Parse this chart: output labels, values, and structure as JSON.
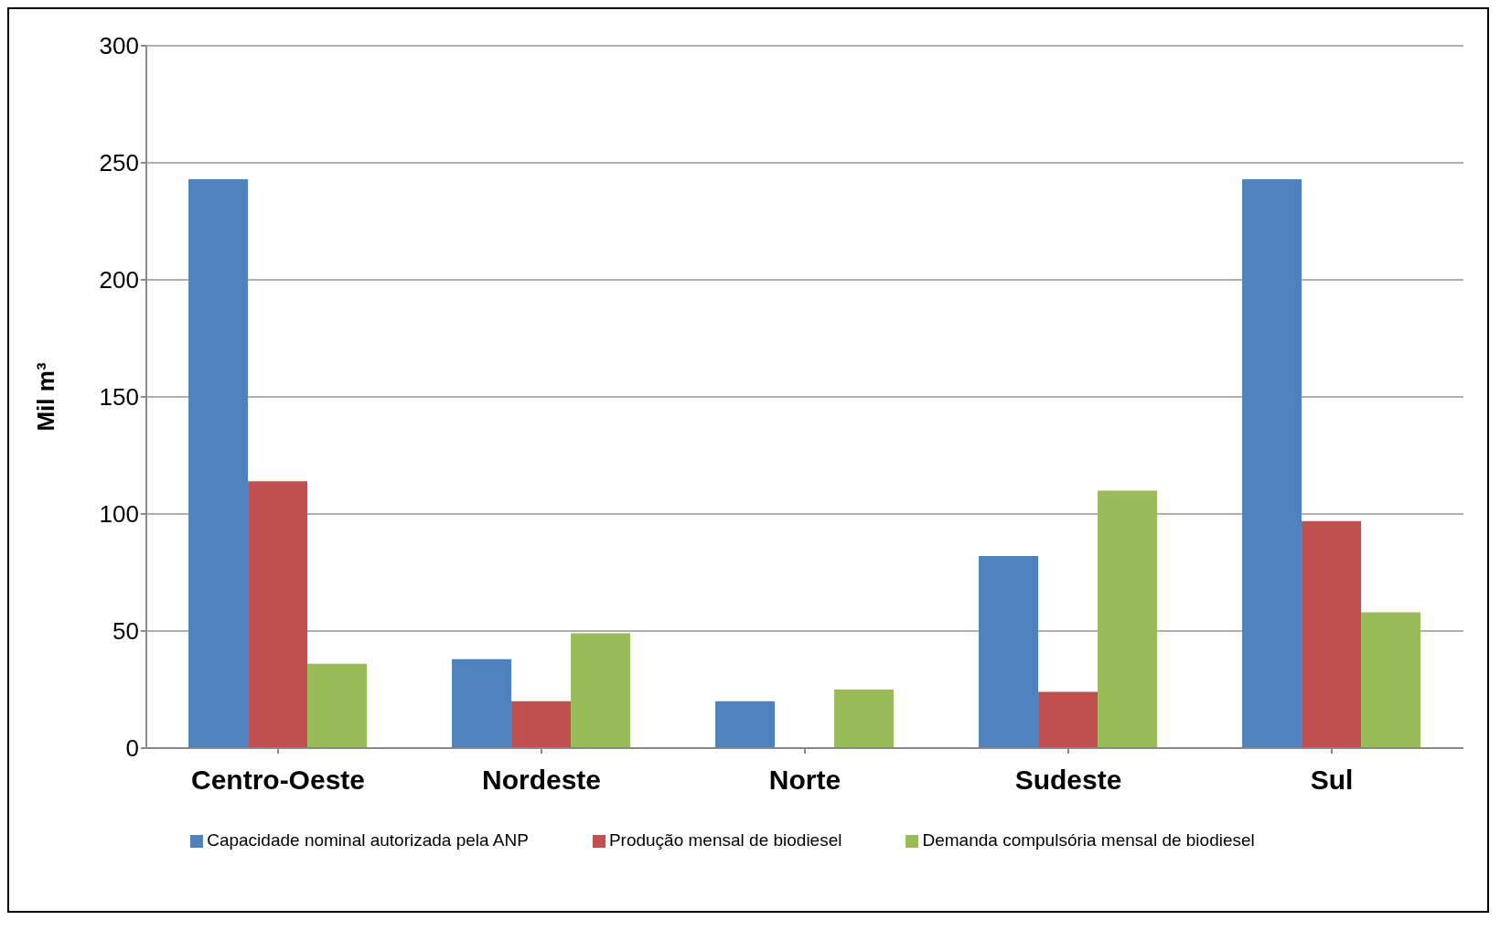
{
  "chart_data": {
    "type": "bar",
    "ylabel": "Mil m³",
    "categories": [
      "Centro-Oeste",
      "Nordeste",
      "Norte",
      "Sudeste",
      "Sul"
    ],
    "series": [
      {
        "name": "Capacidade nominal autorizada pela ANP",
        "color": "#4f81bd",
        "values": [
          243,
          38,
          20,
          82,
          243
        ]
      },
      {
        "name": "Produção mensal de biodiesel",
        "color": "#c0504d",
        "values": [
          114,
          20,
          0,
          24,
          97
        ]
      },
      {
        "name": "Demanda compulsória mensal de biodiesel",
        "color": "#9bbb59",
        "values": [
          36,
          49,
          25,
          110,
          58
        ]
      }
    ],
    "ylim": [
      0,
      300
    ],
    "yticks": [
      0,
      50,
      100,
      150,
      200,
      250,
      300
    ],
    "grid": "y",
    "legend": "bottom"
  }
}
